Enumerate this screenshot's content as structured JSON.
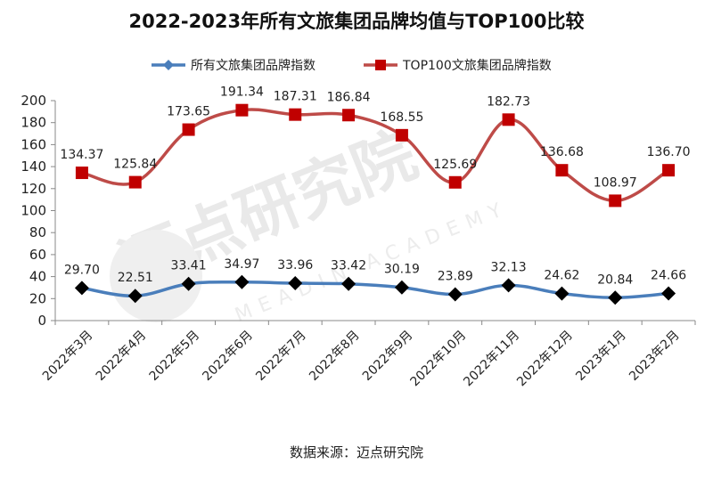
{
  "chart_data": {
    "type": "line",
    "title": "2022-2023年所有文旅集团品牌均值与TOP100比较",
    "categories": [
      "2022年3月",
      "2022年4月",
      "2022年5月",
      "2022年6月",
      "2022年7月",
      "2022年8月",
      "2022年9月",
      "2022年10月",
      "2022年11月",
      "2022年12月",
      "2023年1月",
      "2023年2月"
    ],
    "series": [
      {
        "name": "所有文旅集团品牌指数",
        "color": "#4a7ebb",
        "marker": "diamond",
        "marker_color": "#000000",
        "values": [
          29.7,
          22.51,
          33.41,
          34.97,
          33.96,
          33.42,
          30.19,
          23.89,
          32.13,
          24.62,
          20.84,
          24.66
        ],
        "labels": [
          "29.70",
          "22.51",
          "33.41",
          "34.97",
          "33.96",
          "33.42",
          "30.19",
          "23.89",
          "32.13",
          "24.62",
          "20.84",
          "24.66"
        ]
      },
      {
        "name": "TOP100文旅集团品牌指数",
        "color": "#be4b48",
        "marker": "square",
        "marker_color": "#c00000",
        "values": [
          134.37,
          125.84,
          173.65,
          191.34,
          187.31,
          186.84,
          168.55,
          125.69,
          182.73,
          136.68,
          108.97,
          136.7
        ],
        "labels": [
          "134.37",
          "125.84",
          "173.65",
          "191.34",
          "187.31",
          "186.84",
          "168.55",
          "125.69",
          "182.73",
          "136.68",
          "108.97",
          "136.70"
        ]
      }
    ],
    "ylim": [
      0,
      200
    ],
    "yticks": [
      "0",
      "20",
      "40",
      "60",
      "80",
      "100",
      "120",
      "140",
      "160",
      "180",
      "200"
    ],
    "grid": false,
    "legend_position": "top"
  },
  "watermark": {
    "text": "迈点研究院",
    "subtext": "MEADIN ACADEMY"
  },
  "source": "数据来源：迈点研究院"
}
